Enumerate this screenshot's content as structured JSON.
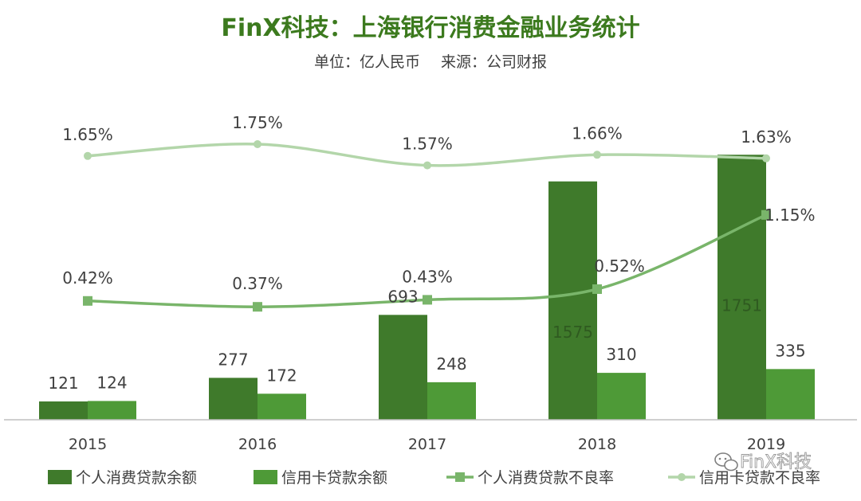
{
  "title": "FinX科技：上海银行消费金融业务统计",
  "subtitle_unit": "单位：亿人民币",
  "subtitle_source": "来源：公司财报",
  "watermark": "FinX科技",
  "colors": {
    "title": "#3c7a1e",
    "personal_bar": "#3f7a2b",
    "card_bar": "#4e9a37",
    "personal_npl_line": "#79b56a",
    "card_npl_line": "#b3d6aa",
    "axis": "#bfbfbf",
    "text": "#404040"
  },
  "chart_data": {
    "type": "bar",
    "categories": [
      "2015",
      "2016",
      "2017",
      "2018",
      "2019"
    ],
    "series": [
      {
        "name": "个人消费贷款余额",
        "kind": "bar",
        "values": [
          121,
          277,
          693,
          1575,
          1751
        ]
      },
      {
        "name": "信用卡贷款余额",
        "kind": "bar",
        "values": [
          124,
          172,
          248,
          310,
          335
        ]
      },
      {
        "name": "个人消费贷款不良率",
        "kind": "line",
        "marker": "square",
        "values": [
          0.42,
          0.37,
          0.43,
          0.52,
          1.15
        ],
        "unit": "%"
      },
      {
        "name": "信用卡贷款不良率",
        "kind": "line",
        "marker": "circle",
        "values": [
          1.65,
          1.75,
          1.57,
          1.66,
          1.63
        ],
        "unit": "%"
      }
    ],
    "labels": {
      "personal_bar": [
        "121",
        "277",
        "693",
        "1575",
        "1751"
      ],
      "card_bar": [
        "124",
        "172",
        "248",
        "310",
        "335"
      ],
      "personal_npl": [
        "0.42%",
        "0.37%",
        "0.43%",
        "0.52%",
        "1.15%"
      ],
      "card_npl": [
        "1.65%",
        "1.75%",
        "1.57%",
        "1.66%",
        "1.63%"
      ]
    },
    "bar_axis_range": [
      0,
      1800
    ],
    "rate_axis_range": [
      0,
      2.0
    ],
    "grid": false,
    "legend_position": "bottom"
  }
}
